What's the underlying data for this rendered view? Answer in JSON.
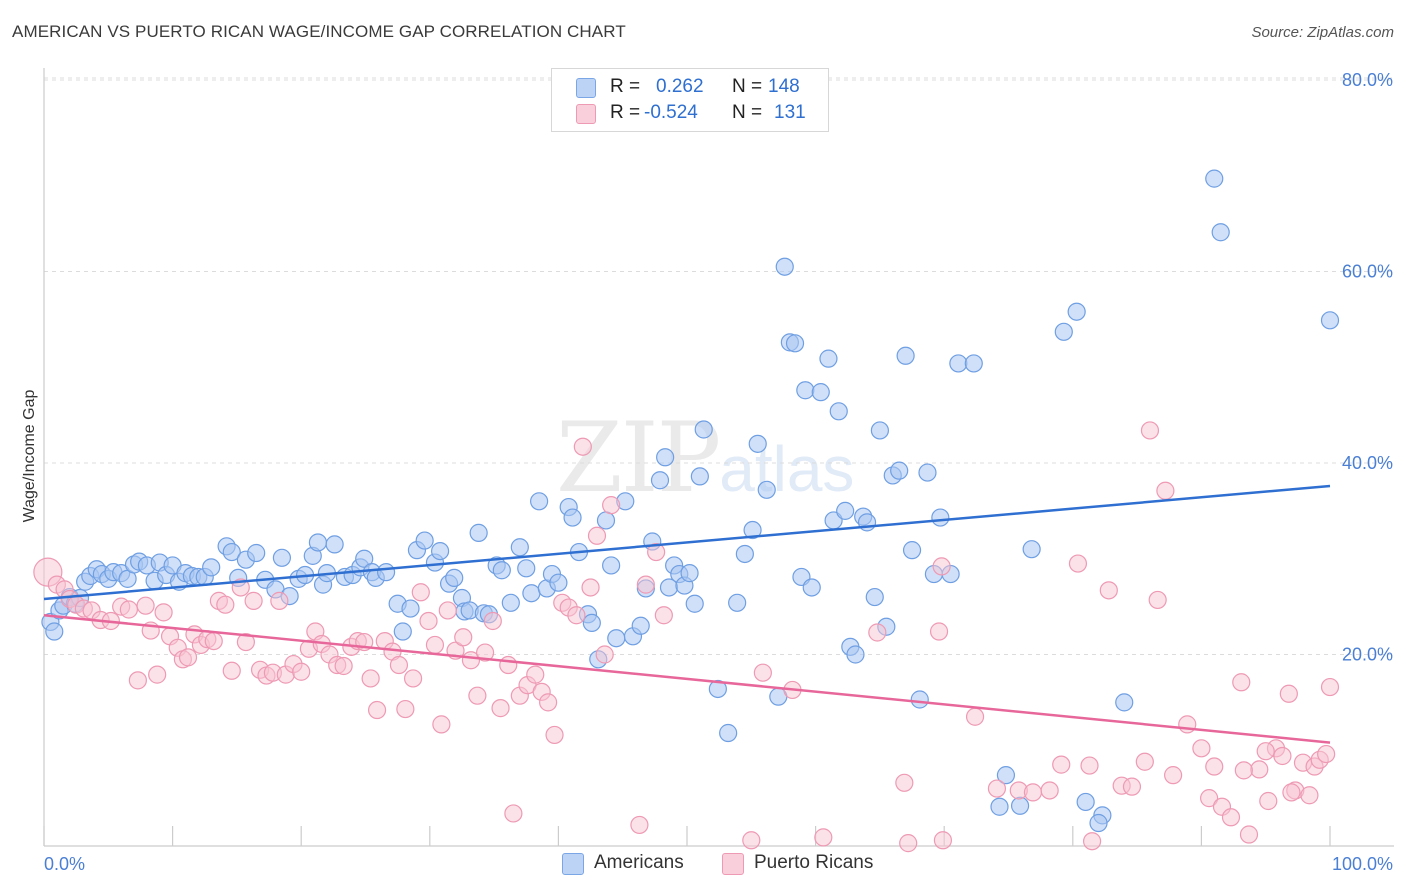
{
  "title": "AMERICAN VS PUERTO RICAN WAGE/INCOME GAP CORRELATION CHART",
  "source": "Source: ZipAtlas.com",
  "watermark": {
    "zip": "ZIP",
    "atlas": "atlas"
  },
  "legend": {
    "rows": [
      {
        "r_label": "R =",
        "r_value": "0.262",
        "n_label": "N =",
        "n_value": "148",
        "color": "#a9c6f2"
      },
      {
        "r_label": "R =",
        "r_value": "-0.524",
        "n_label": "N =",
        "n_value": "131",
        "color": "#f7b8cb"
      }
    ]
  },
  "bottom_legend": [
    {
      "label": "Americans",
      "color": "#a9c6f2"
    },
    {
      "label": "Puerto Ricans",
      "color": "#f7b8cb"
    }
  ],
  "colors": {
    "americans_fill": "#a9c6f2",
    "americans_stroke": "#6f9fe3",
    "americans_line": "#2f6fd1",
    "puerto_fill": "#f7c3d2",
    "puerto_stroke": "#ee9ab4",
    "puerto_line": "#e8679a"
  },
  "chart_data": {
    "type": "scatter",
    "title": "AMERICAN VS PUERTO RICAN WAGE/INCOME GAP CORRELATION CHART",
    "xlabel": "",
    "ylabel": "Wage/Income Gap",
    "xlim": [
      0,
      100
    ],
    "ylim": [
      0,
      80
    ],
    "x_tick_labels": [
      "0.0%",
      "100.0%"
    ],
    "y_ticks": [
      20,
      40,
      60,
      80
    ],
    "y_tick_labels": [
      "20.0%",
      "40.0%",
      "60.0%",
      "80.0%"
    ],
    "grid": true,
    "legend_position": "top-center",
    "series": [
      {
        "name": "Americans",
        "r": 0.262,
        "n": 148,
        "trend": [
          [
            0,
            25.8
          ],
          [
            100,
            37.6
          ]
        ],
        "points": [
          [
            0.5,
            23.4
          ],
          [
            0.8,
            22.4
          ],
          [
            1.2,
            24.6
          ],
          [
            1.5,
            25.1
          ],
          [
            2.0,
            26.0
          ],
          [
            2.4,
            25.3
          ],
          [
            2.8,
            25.9
          ],
          [
            3.2,
            27.6
          ],
          [
            3.6,
            28.2
          ],
          [
            4.1,
            28.9
          ],
          [
            4.5,
            28.4
          ],
          [
            5.0,
            27.9
          ],
          [
            5.4,
            28.6
          ],
          [
            6.0,
            28.5
          ],
          [
            6.5,
            27.9
          ],
          [
            7.0,
            29.4
          ],
          [
            7.4,
            29.7
          ],
          [
            8.0,
            29.3
          ],
          [
            8.6,
            27.7
          ],
          [
            9.0,
            29.6
          ],
          [
            9.5,
            28.3
          ],
          [
            10.0,
            29.3
          ],
          [
            10.5,
            27.6
          ],
          [
            11.0,
            28.5
          ],
          [
            11.5,
            28.2
          ],
          [
            12.0,
            28.1
          ],
          [
            12.5,
            28.1
          ],
          [
            13.0,
            29.1
          ],
          [
            14.2,
            31.3
          ],
          [
            14.6,
            30.7
          ],
          [
            15.1,
            28.0
          ],
          [
            15.7,
            29.9
          ],
          [
            16.5,
            30.6
          ],
          [
            17.2,
            27.8
          ],
          [
            18.0,
            26.8
          ],
          [
            18.5,
            30.1
          ],
          [
            19.1,
            26.1
          ],
          [
            19.8,
            27.9
          ],
          [
            20.3,
            28.3
          ],
          [
            20.9,
            30.3
          ],
          [
            21.3,
            31.7
          ],
          [
            21.7,
            27.3
          ],
          [
            22.0,
            28.5
          ],
          [
            22.6,
            31.5
          ],
          [
            23.4,
            28.1
          ],
          [
            24.0,
            28.3
          ],
          [
            24.6,
            29.1
          ],
          [
            24.9,
            30.0
          ],
          [
            25.5,
            28.6
          ],
          [
            25.8,
            28.0
          ],
          [
            26.6,
            28.6
          ],
          [
            27.5,
            25.3
          ],
          [
            27.9,
            22.4
          ],
          [
            28.5,
            24.8
          ],
          [
            29.0,
            30.9
          ],
          [
            29.6,
            31.9
          ],
          [
            30.4,
            29.6
          ],
          [
            30.8,
            30.8
          ],
          [
            31.5,
            27.4
          ],
          [
            31.9,
            28.0
          ],
          [
            32.5,
            25.9
          ],
          [
            32.7,
            24.5
          ],
          [
            33.1,
            24.6
          ],
          [
            33.8,
            32.7
          ],
          [
            34.2,
            24.3
          ],
          [
            34.6,
            24.2
          ],
          [
            35.2,
            29.3
          ],
          [
            35.6,
            28.8
          ],
          [
            36.3,
            25.4
          ],
          [
            37.0,
            31.2
          ],
          [
            37.5,
            29.0
          ],
          [
            37.9,
            26.4
          ],
          [
            38.5,
            36.0
          ],
          [
            39.1,
            26.9
          ],
          [
            39.5,
            28.4
          ],
          [
            40.0,
            27.5
          ],
          [
            40.8,
            35.4
          ],
          [
            41.1,
            34.3
          ],
          [
            41.6,
            30.7
          ],
          [
            42.3,
            24.2
          ],
          [
            42.6,
            23.3
          ],
          [
            43.1,
            19.5
          ],
          [
            43.7,
            34.0
          ],
          [
            44.1,
            29.3
          ],
          [
            44.5,
            21.7
          ],
          [
            45.2,
            36.0
          ],
          [
            45.8,
            21.9
          ],
          [
            46.4,
            23.0
          ],
          [
            46.8,
            26.9
          ],
          [
            47.3,
            31.8
          ],
          [
            47.9,
            38.2
          ],
          [
            48.3,
            40.6
          ],
          [
            48.6,
            27.0
          ],
          [
            49.0,
            29.3
          ],
          [
            49.4,
            28.4
          ],
          [
            49.8,
            27.2
          ],
          [
            50.2,
            28.5
          ],
          [
            50.6,
            25.3
          ],
          [
            51.0,
            38.6
          ],
          [
            51.3,
            43.5
          ],
          [
            52.4,
            16.4
          ],
          [
            53.2,
            11.8
          ],
          [
            53.9,
            25.4
          ],
          [
            54.5,
            30.5
          ],
          [
            55.1,
            33.0
          ],
          [
            55.5,
            42.0
          ],
          [
            56.2,
            37.2
          ],
          [
            57.1,
            15.6
          ],
          [
            57.6,
            60.5
          ],
          [
            58.0,
            52.6
          ],
          [
            58.4,
            52.5
          ],
          [
            58.9,
            28.1
          ],
          [
            59.2,
            47.6
          ],
          [
            59.7,
            27.0
          ],
          [
            60.4,
            47.4
          ],
          [
            61.0,
            50.9
          ],
          [
            61.4,
            34.0
          ],
          [
            61.8,
            45.4
          ],
          [
            62.3,
            35.0
          ],
          [
            62.7,
            20.8
          ],
          [
            63.1,
            20.0
          ],
          [
            63.7,
            34.4
          ],
          [
            64.0,
            33.8
          ],
          [
            64.6,
            26.0
          ],
          [
            65.0,
            43.4
          ],
          [
            65.5,
            22.9
          ],
          [
            66.0,
            38.7
          ],
          [
            66.5,
            39.2
          ],
          [
            67.0,
            51.2
          ],
          [
            67.5,
            30.9
          ],
          [
            68.1,
            15.3
          ],
          [
            68.7,
            39.0
          ],
          [
            69.2,
            28.4
          ],
          [
            69.7,
            34.3
          ],
          [
            70.5,
            28.4
          ],
          [
            71.1,
            50.4
          ],
          [
            72.3,
            50.4
          ],
          [
            74.3,
            4.1
          ],
          [
            74.8,
            7.4
          ],
          [
            75.9,
            4.2
          ],
          [
            76.8,
            31.0
          ],
          [
            79.3,
            53.7
          ],
          [
            80.3,
            55.8
          ],
          [
            81.0,
            4.6
          ],
          [
            82.3,
            3.2
          ],
          [
            84.0,
            15.0
          ],
          [
            91.0,
            69.7
          ],
          [
            91.5,
            64.1
          ],
          [
            100.0,
            54.9
          ],
          [
            82.0,
            2.4
          ]
        ]
      },
      {
        "name": "Puerto Ricans",
        "r": -0.524,
        "n": 131,
        "trend": [
          [
            0,
            24.1
          ],
          [
            100,
            10.8
          ]
        ],
        "points": [
          [
            0.3,
            28.6
          ],
          [
            1.0,
            27.3
          ],
          [
            1.6,
            26.8
          ],
          [
            2.0,
            25.8
          ],
          [
            2.5,
            25.2
          ],
          [
            3.1,
            24.8
          ],
          [
            3.7,
            24.6
          ],
          [
            4.4,
            23.6
          ],
          [
            5.2,
            23.5
          ],
          [
            6.0,
            25.0
          ],
          [
            6.6,
            24.7
          ],
          [
            7.3,
            17.3
          ],
          [
            7.9,
            25.1
          ],
          [
            8.3,
            22.5
          ],
          [
            8.8,
            17.9
          ],
          [
            9.3,
            24.4
          ],
          [
            9.8,
            21.9
          ],
          [
            10.4,
            20.7
          ],
          [
            10.8,
            19.5
          ],
          [
            11.2,
            19.7
          ],
          [
            11.7,
            22.1
          ],
          [
            12.2,
            21.0
          ],
          [
            12.7,
            21.6
          ],
          [
            13.2,
            21.4
          ],
          [
            13.6,
            25.6
          ],
          [
            14.1,
            25.2
          ],
          [
            14.6,
            18.3
          ],
          [
            15.3,
            27.0
          ],
          [
            15.7,
            21.3
          ],
          [
            16.3,
            25.6
          ],
          [
            16.8,
            18.4
          ],
          [
            17.3,
            17.8
          ],
          [
            17.8,
            18.1
          ],
          [
            18.3,
            25.6
          ],
          [
            18.8,
            17.9
          ],
          [
            19.4,
            19.0
          ],
          [
            20.0,
            18.2
          ],
          [
            20.6,
            20.6
          ],
          [
            21.1,
            22.4
          ],
          [
            21.6,
            21.1
          ],
          [
            22.2,
            20.0
          ],
          [
            22.8,
            18.9
          ],
          [
            23.3,
            18.8
          ],
          [
            23.9,
            20.8
          ],
          [
            24.4,
            21.4
          ],
          [
            24.9,
            21.3
          ],
          [
            25.4,
            17.5
          ],
          [
            25.9,
            14.2
          ],
          [
            26.5,
            21.4
          ],
          [
            27.1,
            20.3
          ],
          [
            27.6,
            18.9
          ],
          [
            28.1,
            14.3
          ],
          [
            28.7,
            17.5
          ],
          [
            29.3,
            26.5
          ],
          [
            29.9,
            23.5
          ],
          [
            30.4,
            21.0
          ],
          [
            30.9,
            12.7
          ],
          [
            31.4,
            24.6
          ],
          [
            32.0,
            20.4
          ],
          [
            32.6,
            21.8
          ],
          [
            33.2,
            19.4
          ],
          [
            33.7,
            15.7
          ],
          [
            34.3,
            20.2
          ],
          [
            34.9,
            23.5
          ],
          [
            35.5,
            14.4
          ],
          [
            36.1,
            18.9
          ],
          [
            36.5,
            3.4
          ],
          [
            37.0,
            15.7
          ],
          [
            37.6,
            16.8
          ],
          [
            38.2,
            17.9
          ],
          [
            38.7,
            16.1
          ],
          [
            39.2,
            15.0
          ],
          [
            39.7,
            11.6
          ],
          [
            40.3,
            25.4
          ],
          [
            40.8,
            24.9
          ],
          [
            41.4,
            24.1
          ],
          [
            41.9,
            41.7
          ],
          [
            42.5,
            27.0
          ],
          [
            43.0,
            32.4
          ],
          [
            43.6,
            20.0
          ],
          [
            44.1,
            35.6
          ],
          [
            46.3,
            2.2
          ],
          [
            46.8,
            27.3
          ],
          [
            47.6,
            30.7
          ],
          [
            48.2,
            24.1
          ],
          [
            55.9,
            18.1
          ],
          [
            58.2,
            16.3
          ],
          [
            64.8,
            22.3
          ],
          [
            66.9,
            6.6
          ],
          [
            69.6,
            22.4
          ],
          [
            69.8,
            29.2
          ],
          [
            69.9,
            0.6
          ],
          [
            72.4,
            13.5
          ],
          [
            74.1,
            6.0
          ],
          [
            75.8,
            5.8
          ],
          [
            76.9,
            5.6
          ],
          [
            78.2,
            5.8
          ],
          [
            79.1,
            8.5
          ],
          [
            80.4,
            29.5
          ],
          [
            81.3,
            8.4
          ],
          [
            82.8,
            26.7
          ],
          [
            83.8,
            6.3
          ],
          [
            84.6,
            6.2
          ],
          [
            85.6,
            8.8
          ],
          [
            86.0,
            43.4
          ],
          [
            86.6,
            25.7
          ],
          [
            87.2,
            37.1
          ],
          [
            87.8,
            7.4
          ],
          [
            88.9,
            12.7
          ],
          [
            90.0,
            10.2
          ],
          [
            90.6,
            5.0
          ],
          [
            91.6,
            4.1
          ],
          [
            92.3,
            3.0
          ],
          [
            93.1,
            17.1
          ],
          [
            93.7,
            1.2
          ],
          [
            94.5,
            8.0
          ],
          [
            95.2,
            4.7
          ],
          [
            95.8,
            10.2
          ],
          [
            96.3,
            9.4
          ],
          [
            96.8,
            15.9
          ],
          [
            97.3,
            5.8
          ],
          [
            97.9,
            8.7
          ],
          [
            98.4,
            5.3
          ],
          [
            98.8,
            8.3
          ],
          [
            99.2,
            9.0
          ],
          [
            99.7,
            9.6
          ],
          [
            100.0,
            16.6
          ],
          [
            95.0,
            9.9
          ],
          [
            97.0,
            5.6
          ],
          [
            93.3,
            7.9
          ],
          [
            91.0,
            8.3
          ],
          [
            81.5,
            0.5
          ],
          [
            67.2,
            0.3
          ],
          [
            60.6,
            0.9
          ],
          [
            55.0,
            0.6
          ]
        ]
      }
    ]
  }
}
